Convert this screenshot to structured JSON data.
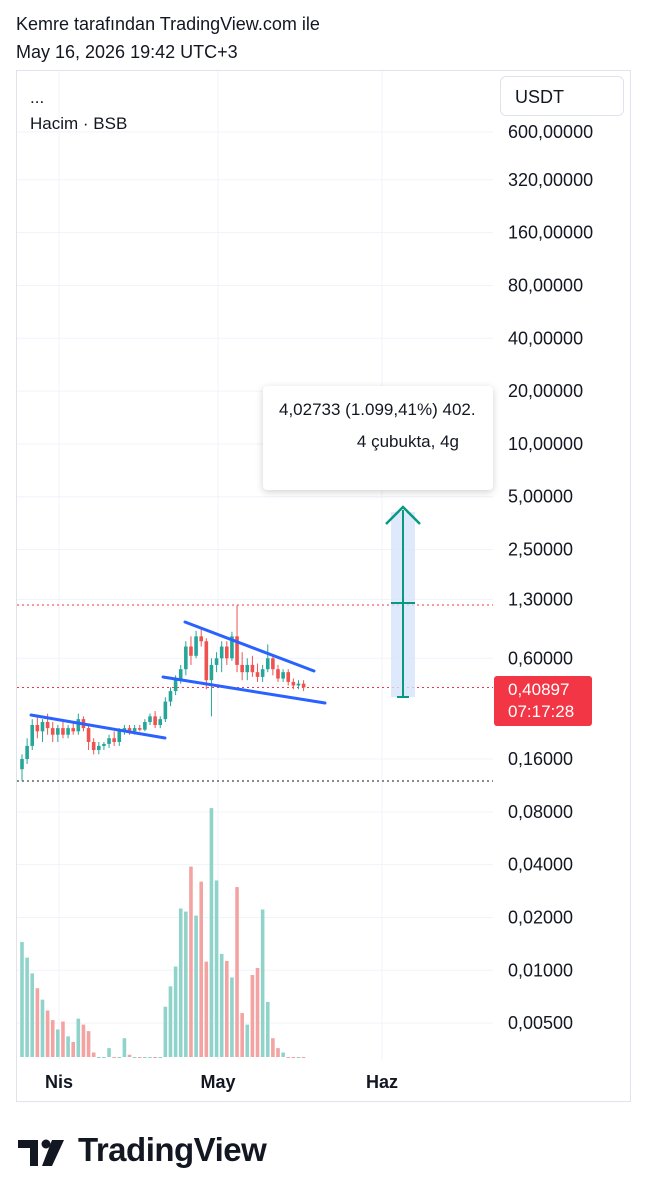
{
  "header": {
    "author_line": "Kemre tarafından TradingView.com ile",
    "timestamp": "May 16, 2026 19:42 UTC+3"
  },
  "legend": {
    "menu": "...",
    "volume_label": "Hacim · BSB"
  },
  "currency_button": "USDT",
  "measure_tool": {
    "line1": "4,02733 (1.099,41%) 402.",
    "line2": "4 çubukta, 4g"
  },
  "last_price": {
    "value": "0,40897",
    "countdown": "07:17:28"
  },
  "footer": {
    "brand": "TradingView"
  },
  "colors": {
    "up": "#26a69a",
    "down": "#ef5350",
    "volume_up": "#8fd3cb",
    "volume_down": "#f3a3a1",
    "trendline": "#2962ff",
    "measure": "#089981",
    "price_badge": "#f23645"
  },
  "chart_data": {
    "type": "candlestick",
    "price_scale": "log",
    "currency": "USDT",
    "y_ticks": [
      "600,00000",
      "320,00000",
      "160,00000",
      "80,00000",
      "40,00000",
      "20,00000",
      "10,00000",
      "5,00000",
      "2,50000",
      "1,30000",
      "0,60000",
      "0,16000",
      "0,08000",
      "0,04000",
      "0,02000",
      "0,01000",
      "0,00500"
    ],
    "x_ticks": [
      "Nis",
      "May",
      "Haz"
    ],
    "last_price": 0.40897,
    "candles": [
      {
        "o": 0.14,
        "h": 0.17,
        "l": 0.12,
        "c": 0.16
      },
      {
        "o": 0.16,
        "h": 0.21,
        "l": 0.15,
        "c": 0.19
      },
      {
        "o": 0.19,
        "h": 0.27,
        "l": 0.18,
        "c": 0.25
      },
      {
        "o": 0.25,
        "h": 0.28,
        "l": 0.21,
        "c": 0.23
      },
      {
        "o": 0.23,
        "h": 0.27,
        "l": 0.2,
        "c": 0.26
      },
      {
        "o": 0.26,
        "h": 0.29,
        "l": 0.22,
        "c": 0.24
      },
      {
        "o": 0.24,
        "h": 0.26,
        "l": 0.2,
        "c": 0.22
      },
      {
        "o": 0.22,
        "h": 0.25,
        "l": 0.2,
        "c": 0.24
      },
      {
        "o": 0.24,
        "h": 0.26,
        "l": 0.21,
        "c": 0.22
      },
      {
        "o": 0.22,
        "h": 0.25,
        "l": 0.21,
        "c": 0.24
      },
      {
        "o": 0.24,
        "h": 0.26,
        "l": 0.22,
        "c": 0.23
      },
      {
        "o": 0.23,
        "h": 0.29,
        "l": 0.22,
        "c": 0.27
      },
      {
        "o": 0.27,
        "h": 0.28,
        "l": 0.23,
        "c": 0.24
      },
      {
        "o": 0.24,
        "h": 0.25,
        "l": 0.18,
        "c": 0.2
      },
      {
        "o": 0.2,
        "h": 0.21,
        "l": 0.17,
        "c": 0.18
      },
      {
        "o": 0.18,
        "h": 0.2,
        "l": 0.17,
        "c": 0.19
      },
      {
        "o": 0.19,
        "h": 0.2,
        "l": 0.18,
        "c": 0.195
      },
      {
        "o": 0.195,
        "h": 0.22,
        "l": 0.185,
        "c": 0.21
      },
      {
        "o": 0.21,
        "h": 0.23,
        "l": 0.19,
        "c": 0.2
      },
      {
        "o": 0.2,
        "h": 0.24,
        "l": 0.19,
        "c": 0.23
      },
      {
        "o": 0.23,
        "h": 0.25,
        "l": 0.22,
        "c": 0.24
      },
      {
        "o": 0.24,
        "h": 0.25,
        "l": 0.22,
        "c": 0.23
      },
      {
        "o": 0.23,
        "h": 0.25,
        "l": 0.22,
        "c": 0.24
      },
      {
        "o": 0.24,
        "h": 0.25,
        "l": 0.23,
        "c": 0.235
      },
      {
        "o": 0.235,
        "h": 0.27,
        "l": 0.23,
        "c": 0.26
      },
      {
        "o": 0.26,
        "h": 0.29,
        "l": 0.25,
        "c": 0.28
      },
      {
        "o": 0.28,
        "h": 0.3,
        "l": 0.24,
        "c": 0.25
      },
      {
        "o": 0.25,
        "h": 0.28,
        "l": 0.24,
        "c": 0.27
      },
      {
        "o": 0.27,
        "h": 0.36,
        "l": 0.26,
        "c": 0.34
      },
      {
        "o": 0.34,
        "h": 0.41,
        "l": 0.32,
        "c": 0.39
      },
      {
        "o": 0.39,
        "h": 0.48,
        "l": 0.37,
        "c": 0.46
      },
      {
        "o": 0.46,
        "h": 0.55,
        "l": 0.43,
        "c": 0.52
      },
      {
        "o": 0.52,
        "h": 0.75,
        "l": 0.48,
        "c": 0.7
      },
      {
        "o": 0.7,
        "h": 0.8,
        "l": 0.55,
        "c": 0.62
      },
      {
        "o": 0.62,
        "h": 0.86,
        "l": 0.6,
        "c": 0.8
      },
      {
        "o": 0.8,
        "h": 0.9,
        "l": 0.7,
        "c": 0.75
      },
      {
        "o": 0.75,
        "h": 0.78,
        "l": 0.4,
        "c": 0.45
      },
      {
        "o": 0.45,
        "h": 0.6,
        "l": 0.28,
        "c": 0.55
      },
      {
        "o": 0.55,
        "h": 0.65,
        "l": 0.5,
        "c": 0.6
      },
      {
        "o": 0.6,
        "h": 0.75,
        "l": 0.5,
        "c": 0.7
      },
      {
        "o": 0.7,
        "h": 0.75,
        "l": 0.55,
        "c": 0.6
      },
      {
        "o": 0.6,
        "h": 0.85,
        "l": 0.58,
        "c": 0.8
      },
      {
        "o": 0.8,
        "h": 1.2,
        "l": 0.5,
        "c": 0.55
      },
      {
        "o": 0.55,
        "h": 0.65,
        "l": 0.45,
        "c": 0.5
      },
      {
        "o": 0.5,
        "h": 0.6,
        "l": 0.45,
        "c": 0.55
      },
      {
        "o": 0.55,
        "h": 0.62,
        "l": 0.47,
        "c": 0.5
      },
      {
        "o": 0.5,
        "h": 0.56,
        "l": 0.44,
        "c": 0.47
      },
      {
        "o": 0.47,
        "h": 0.55,
        "l": 0.44,
        "c": 0.52
      },
      {
        "o": 0.52,
        "h": 0.72,
        "l": 0.5,
        "c": 0.6
      },
      {
        "o": 0.6,
        "h": 0.62,
        "l": 0.48,
        "c": 0.52
      },
      {
        "o": 0.52,
        "h": 0.55,
        "l": 0.44,
        "c": 0.46
      },
      {
        "o": 0.46,
        "h": 0.52,
        "l": 0.44,
        "c": 0.5
      },
      {
        "o": 0.5,
        "h": 0.52,
        "l": 0.42,
        "c": 0.44
      },
      {
        "o": 0.44,
        "h": 0.46,
        "l": 0.4,
        "c": 0.42
      },
      {
        "o": 0.42,
        "h": 0.45,
        "l": 0.4,
        "c": 0.43
      },
      {
        "o": 0.43,
        "h": 0.45,
        "l": 0.39,
        "c": 0.40897
      }
    ],
    "volume": [
      0.0145,
      0.0118,
      0.0096,
      0.0079,
      0.0068,
      0.0059,
      0.0052,
      0.0046,
      0.0051,
      0.0042,
      0.0039,
      0.0053,
      0.0049,
      0.0045,
      0.0034,
      0.0032,
      0.0029,
      0.0036,
      0.0031,
      0.0027,
      0.0041,
      0.0033,
      0.0028,
      0.003,
      0.0026,
      0.0029,
      0.0025,
      0.0024,
      0.0062,
      0.0081,
      0.0105,
      0.0225,
      0.0216,
      0.039,
      0.0205,
      0.032,
      0.0112,
      0.084,
      0.0325,
      0.0124,
      0.0113,
      0.0091,
      0.0298,
      0.0057,
      0.0049,
      0.0094,
      0.0103,
      0.0222,
      0.0066,
      0.0041,
      0.0036,
      0.0034,
      0.0032,
      0.0031,
      0.0029,
      0.0026
    ]
  }
}
